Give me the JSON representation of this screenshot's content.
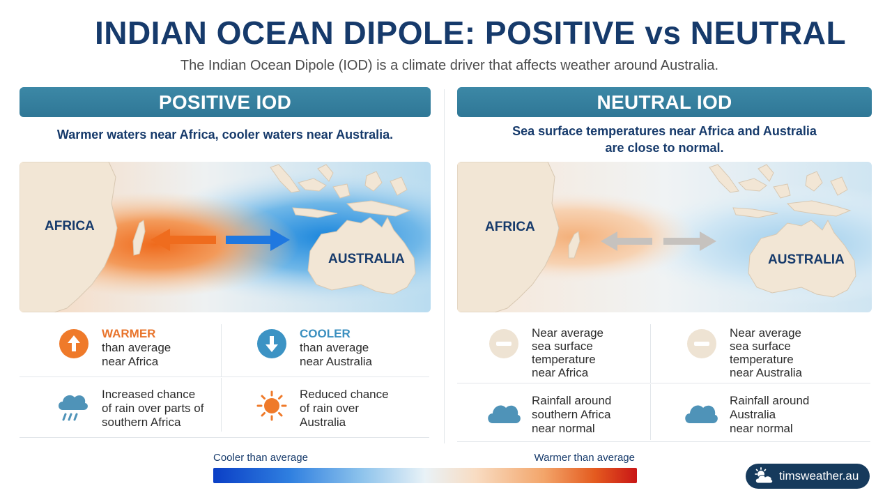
{
  "header": {
    "title": "INDIAN OCEAN DIPOLE: POSITIVE vs NEUTRAL",
    "subtitle": "The Indian Ocean Dipole (IOD) is a climate driver that affects weather around Australia."
  },
  "positive": {
    "banner": "POSITIVE IOD",
    "description": "Warmer waters near Africa, cooler waters near Australia.",
    "map": {
      "africa_label": "AFRICA",
      "australia_label": "AUSTRALIA"
    },
    "items": [
      {
        "icon": "arrow-up-icon",
        "highlight": "WARMER",
        "line1": "than average",
        "line2": "near Africa"
      },
      {
        "icon": "arrow-down-icon",
        "highlight": "COOLER",
        "line1": "than average",
        "line2": "near Australia"
      },
      {
        "icon": "rain-cloud-icon",
        "line1": "Increased chance",
        "line2": "of rain over parts of",
        "line3": "southern Africa"
      },
      {
        "icon": "sun-icon",
        "line1": "Reduced chance",
        "line2": "of rain over",
        "line3": "Australia"
      }
    ]
  },
  "neutral": {
    "banner": "NEUTRAL IOD",
    "description_line1": "Sea surface temperatures near Africa and Australia",
    "description_line2": "are close to normal.",
    "map": {
      "africa_label": "AFRICA",
      "australia_label": "AUSTRALIA"
    },
    "items": [
      {
        "icon": "minus-icon",
        "line1": "Near average",
        "line2": "sea surface",
        "line3": "temperature",
        "line4": "near Africa"
      },
      {
        "icon": "minus-icon",
        "line1": "Near average",
        "line2": "sea surface",
        "line3": "temperature",
        "line4": "near Australia"
      },
      {
        "icon": "cloud-icon",
        "line1": "Rainfall around",
        "line2": "southern Africa",
        "line3": "near normal"
      },
      {
        "icon": "cloud-icon",
        "line1": "Rainfall around",
        "line2": "Australia",
        "line3": "near normal"
      }
    ]
  },
  "legend": {
    "cool_label": "Cooler than average",
    "warm_label": "Warmer than average"
  },
  "brand": {
    "name": "timsweather.au"
  },
  "colors": {
    "banner": "#2f7796",
    "title": "#163a6b",
    "warm": "#e8742c",
    "cool": "#3a8fbf",
    "neutral_icon": "#eee3d3",
    "cloud": "#4f93b8"
  }
}
